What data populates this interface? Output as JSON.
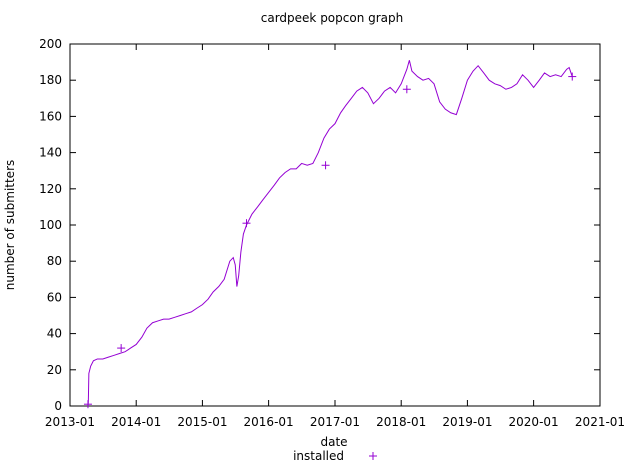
{
  "chart_data": {
    "type": "line",
    "title": "cardpeek popcon graph",
    "xlabel": "date",
    "ylabel": "number of submitters",
    "ylim": [
      0,
      200
    ],
    "yticks": [
      0,
      20,
      40,
      60,
      80,
      100,
      120,
      140,
      160,
      180,
      200
    ],
    "xlim": [
      "2013-01-01",
      "2021-01-01"
    ],
    "xticks": [
      "2013-01",
      "2014-01",
      "2015-01",
      "2016-01",
      "2017-01",
      "2018-01",
      "2019-01",
      "2020-01",
      "2021-01"
    ],
    "grid": false,
    "legend_position": "bottom",
    "series": [
      {
        "name": "installed",
        "color": "#9400d3",
        "points": [
          [
            "2013-04-10",
            0
          ],
          [
            "2013-04-12",
            2
          ],
          [
            "2013-04-15",
            18
          ],
          [
            "2013-04-25",
            22
          ],
          [
            "2013-05-10",
            25
          ],
          [
            "2013-06-01",
            26
          ],
          [
            "2013-07-01",
            26
          ],
          [
            "2013-08-01",
            27
          ],
          [
            "2013-09-01",
            28
          ],
          [
            "2013-10-01",
            29
          ],
          [
            "2013-11-01",
            30
          ],
          [
            "2013-12-01",
            32
          ],
          [
            "2014-01-01",
            34
          ],
          [
            "2014-02-01",
            38
          ],
          [
            "2014-03-01",
            43
          ],
          [
            "2014-04-01",
            46
          ],
          [
            "2014-05-01",
            47
          ],
          [
            "2014-06-01",
            48
          ],
          [
            "2014-07-01",
            48
          ],
          [
            "2014-08-01",
            49
          ],
          [
            "2014-09-01",
            50
          ],
          [
            "2014-10-01",
            51
          ],
          [
            "2014-11-01",
            52
          ],
          [
            "2014-12-01",
            54
          ],
          [
            "2015-01-01",
            56
          ],
          [
            "2015-02-01",
            59
          ],
          [
            "2015-03-01",
            63
          ],
          [
            "2015-04-01",
            66
          ],
          [
            "2015-05-01",
            70
          ],
          [
            "2015-06-01",
            80
          ],
          [
            "2015-06-20",
            82
          ],
          [
            "2015-07-01",
            78
          ],
          [
            "2015-07-10",
            66
          ],
          [
            "2015-07-20",
            72
          ],
          [
            "2015-08-01",
            85
          ],
          [
            "2015-08-15",
            95
          ],
          [
            "2015-09-01",
            100
          ],
          [
            "2015-10-01",
            106
          ],
          [
            "2015-11-01",
            110
          ],
          [
            "2015-12-01",
            114
          ],
          [
            "2016-01-01",
            118
          ],
          [
            "2016-02-01",
            122
          ],
          [
            "2016-03-01",
            126
          ],
          [
            "2016-04-01",
            129
          ],
          [
            "2016-05-01",
            131
          ],
          [
            "2016-06-01",
            131
          ],
          [
            "2016-07-01",
            134
          ],
          [
            "2016-08-01",
            133
          ],
          [
            "2016-09-01",
            134
          ],
          [
            "2016-10-01",
            140
          ],
          [
            "2016-11-01",
            148
          ],
          [
            "2016-12-01",
            153
          ],
          [
            "2017-01-01",
            156
          ],
          [
            "2017-02-01",
            162
          ],
          [
            "2017-03-01",
            166
          ],
          [
            "2017-04-01",
            170
          ],
          [
            "2017-05-01",
            174
          ],
          [
            "2017-06-01",
            176
          ],
          [
            "2017-07-01",
            173
          ],
          [
            "2017-08-01",
            167
          ],
          [
            "2017-09-01",
            170
          ],
          [
            "2017-10-01",
            174
          ],
          [
            "2017-11-01",
            176
          ],
          [
            "2017-12-01",
            173
          ],
          [
            "2018-01-01",
            178
          ],
          [
            "2018-02-01",
            186
          ],
          [
            "2018-02-15",
            191
          ],
          [
            "2018-03-01",
            185
          ],
          [
            "2018-04-01",
            182
          ],
          [
            "2018-05-01",
            180
          ],
          [
            "2018-06-01",
            181
          ],
          [
            "2018-07-01",
            178
          ],
          [
            "2018-08-01",
            168
          ],
          [
            "2018-09-01",
            164
          ],
          [
            "2018-10-01",
            162
          ],
          [
            "2018-11-01",
            161
          ],
          [
            "2018-12-01",
            170
          ],
          [
            "2019-01-01",
            180
          ],
          [
            "2019-02-01",
            185
          ],
          [
            "2019-03-01",
            188
          ],
          [
            "2019-04-01",
            184
          ],
          [
            "2019-05-01",
            180
          ],
          [
            "2019-06-01",
            178
          ],
          [
            "2019-07-01",
            177
          ],
          [
            "2019-08-01",
            175
          ],
          [
            "2019-09-01",
            176
          ],
          [
            "2019-10-01",
            178
          ],
          [
            "2019-11-01",
            183
          ],
          [
            "2019-12-01",
            180
          ],
          [
            "2020-01-01",
            176
          ],
          [
            "2020-02-01",
            180
          ],
          [
            "2020-03-01",
            184
          ],
          [
            "2020-04-01",
            182
          ],
          [
            "2020-05-01",
            183
          ],
          [
            "2020-06-01",
            182
          ],
          [
            "2020-07-01",
            186
          ],
          [
            "2020-07-15",
            187
          ],
          [
            "2020-08-01",
            182
          ]
        ],
        "markers": [
          [
            "2013-04-10",
            1
          ],
          [
            "2013-10-10",
            32
          ],
          [
            "2015-09-01",
            101
          ],
          [
            "2016-11-10",
            133
          ],
          [
            "2018-02-01",
            175
          ],
          [
            "2020-08-01",
            182
          ]
        ]
      }
    ]
  }
}
